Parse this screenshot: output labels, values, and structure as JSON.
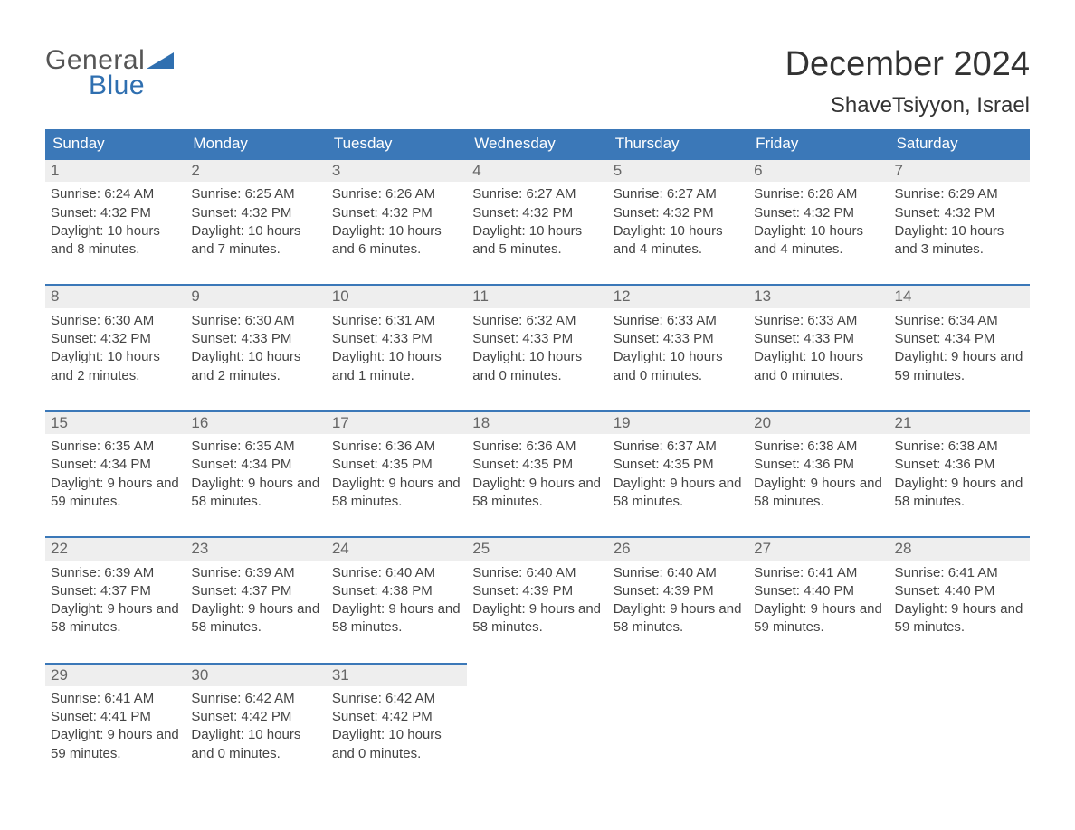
{
  "logo": {
    "text_general": "General",
    "text_blue": "Blue",
    "logo_color": "#2f6fb0"
  },
  "title": "December 2024",
  "location": "ShaveTsiyyon, Israel",
  "colors": {
    "header_bg": "#3b78b8",
    "header_text": "#ffffff",
    "daynum_bg": "#eeeeee",
    "border": "#3b78b8",
    "body_text": "#444444",
    "title_text": "#333333"
  },
  "layout": {
    "columns": 7,
    "rows": 5
  },
  "weekdays": [
    "Sunday",
    "Monday",
    "Tuesday",
    "Wednesday",
    "Thursday",
    "Friday",
    "Saturday"
  ],
  "days": [
    {
      "n": "1",
      "sunrise": "6:24 AM",
      "sunset": "4:32 PM",
      "daylight": "10 hours and 8 minutes."
    },
    {
      "n": "2",
      "sunrise": "6:25 AM",
      "sunset": "4:32 PM",
      "daylight": "10 hours and 7 minutes."
    },
    {
      "n": "3",
      "sunrise": "6:26 AM",
      "sunset": "4:32 PM",
      "daylight": "10 hours and 6 minutes."
    },
    {
      "n": "4",
      "sunrise": "6:27 AM",
      "sunset": "4:32 PM",
      "daylight": "10 hours and 5 minutes."
    },
    {
      "n": "5",
      "sunrise": "6:27 AM",
      "sunset": "4:32 PM",
      "daylight": "10 hours and 4 minutes."
    },
    {
      "n": "6",
      "sunrise": "6:28 AM",
      "sunset": "4:32 PM",
      "daylight": "10 hours and 4 minutes."
    },
    {
      "n": "7",
      "sunrise": "6:29 AM",
      "sunset": "4:32 PM",
      "daylight": "10 hours and 3 minutes."
    },
    {
      "n": "8",
      "sunrise": "6:30 AM",
      "sunset": "4:32 PM",
      "daylight": "10 hours and 2 minutes."
    },
    {
      "n": "9",
      "sunrise": "6:30 AM",
      "sunset": "4:33 PM",
      "daylight": "10 hours and 2 minutes."
    },
    {
      "n": "10",
      "sunrise": "6:31 AM",
      "sunset": "4:33 PM",
      "daylight": "10 hours and 1 minute."
    },
    {
      "n": "11",
      "sunrise": "6:32 AM",
      "sunset": "4:33 PM",
      "daylight": "10 hours and 0 minutes."
    },
    {
      "n": "12",
      "sunrise": "6:33 AM",
      "sunset": "4:33 PM",
      "daylight": "10 hours and 0 minutes."
    },
    {
      "n": "13",
      "sunrise": "6:33 AM",
      "sunset": "4:33 PM",
      "daylight": "10 hours and 0 minutes."
    },
    {
      "n": "14",
      "sunrise": "6:34 AM",
      "sunset": "4:34 PM",
      "daylight": "9 hours and 59 minutes."
    },
    {
      "n": "15",
      "sunrise": "6:35 AM",
      "sunset": "4:34 PM",
      "daylight": "9 hours and 59 minutes."
    },
    {
      "n": "16",
      "sunrise": "6:35 AM",
      "sunset": "4:34 PM",
      "daylight": "9 hours and 58 minutes."
    },
    {
      "n": "17",
      "sunrise": "6:36 AM",
      "sunset": "4:35 PM",
      "daylight": "9 hours and 58 minutes."
    },
    {
      "n": "18",
      "sunrise": "6:36 AM",
      "sunset": "4:35 PM",
      "daylight": "9 hours and 58 minutes."
    },
    {
      "n": "19",
      "sunrise": "6:37 AM",
      "sunset": "4:35 PM",
      "daylight": "9 hours and 58 minutes."
    },
    {
      "n": "20",
      "sunrise": "6:38 AM",
      "sunset": "4:36 PM",
      "daylight": "9 hours and 58 minutes."
    },
    {
      "n": "21",
      "sunrise": "6:38 AM",
      "sunset": "4:36 PM",
      "daylight": "9 hours and 58 minutes."
    },
    {
      "n": "22",
      "sunrise": "6:39 AM",
      "sunset": "4:37 PM",
      "daylight": "9 hours and 58 minutes."
    },
    {
      "n": "23",
      "sunrise": "6:39 AM",
      "sunset": "4:37 PM",
      "daylight": "9 hours and 58 minutes."
    },
    {
      "n": "24",
      "sunrise": "6:40 AM",
      "sunset": "4:38 PM",
      "daylight": "9 hours and 58 minutes."
    },
    {
      "n": "25",
      "sunrise": "6:40 AM",
      "sunset": "4:39 PM",
      "daylight": "9 hours and 58 minutes."
    },
    {
      "n": "26",
      "sunrise": "6:40 AM",
      "sunset": "4:39 PM",
      "daylight": "9 hours and 58 minutes."
    },
    {
      "n": "27",
      "sunrise": "6:41 AM",
      "sunset": "4:40 PM",
      "daylight": "9 hours and 59 minutes."
    },
    {
      "n": "28",
      "sunrise": "6:41 AM",
      "sunset": "4:40 PM",
      "daylight": "9 hours and 59 minutes."
    },
    {
      "n": "29",
      "sunrise": "6:41 AM",
      "sunset": "4:41 PM",
      "daylight": "9 hours and 59 minutes."
    },
    {
      "n": "30",
      "sunrise": "6:42 AM",
      "sunset": "4:42 PM",
      "daylight": "10 hours and 0 minutes."
    },
    {
      "n": "31",
      "sunrise": "6:42 AM",
      "sunset": "4:42 PM",
      "daylight": "10 hours and 0 minutes."
    }
  ],
  "labels": {
    "sunrise": "Sunrise:",
    "sunset": "Sunset:",
    "daylight": "Daylight:"
  }
}
